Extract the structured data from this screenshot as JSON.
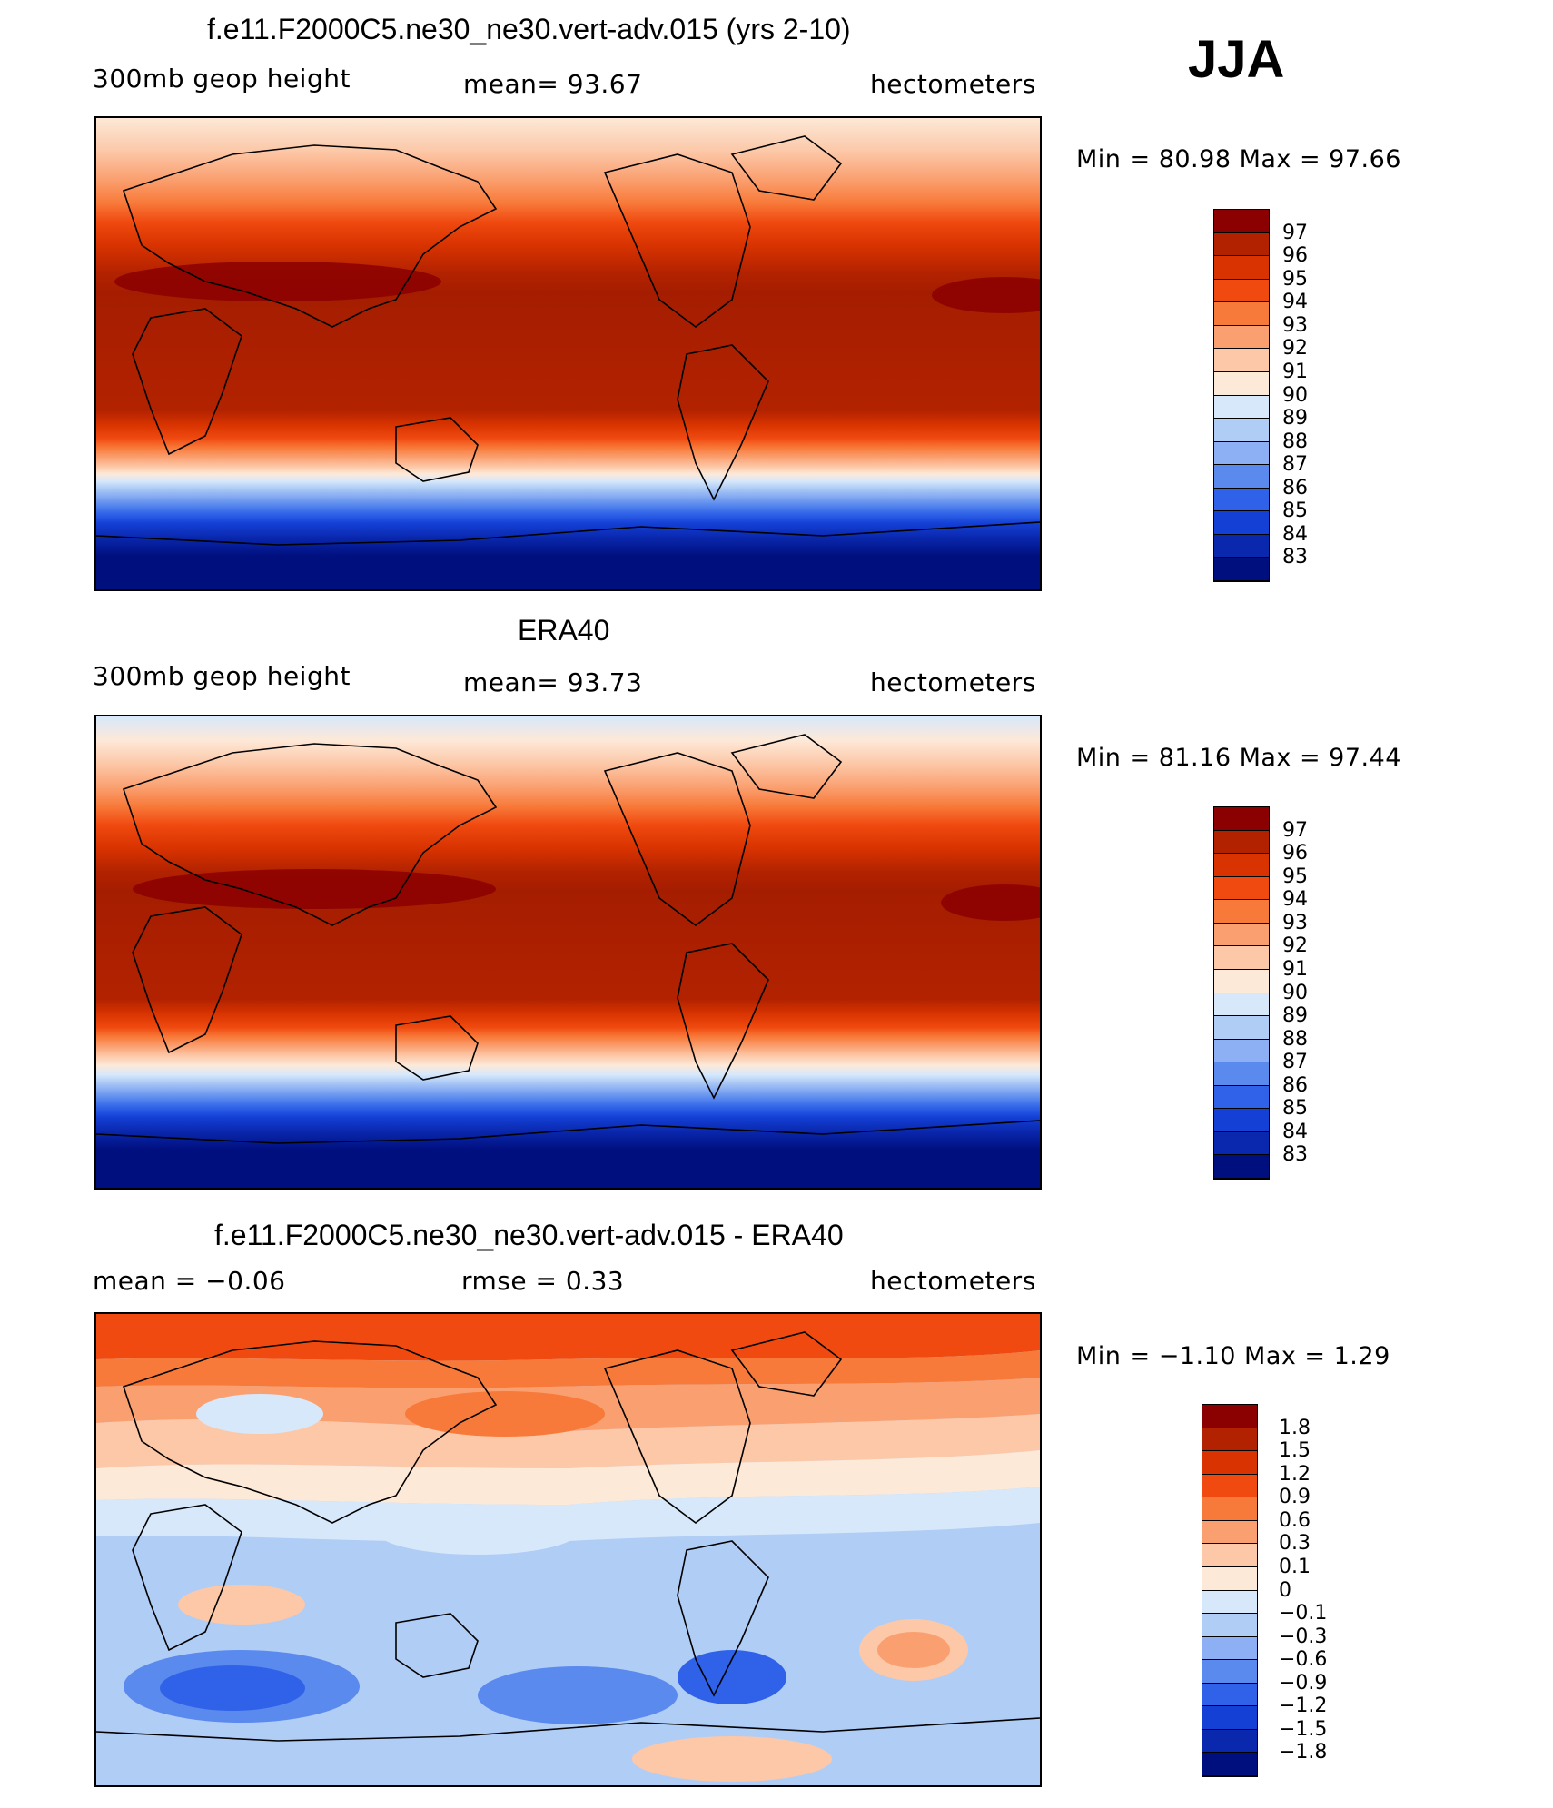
{
  "season": "JJA",
  "panels": [
    {
      "title": "f.e11.F2000C5.ne30_ne30.vert-adv.015 (yrs 2-10)",
      "left_label": "300mb  geop  height",
      "center_label": "mean=   93.67",
      "right_label": "hectometers",
      "minmax": "Min  =    80.98  Max  =    97.66",
      "colorbar_labels": [
        "97",
        "96",
        "95",
        "94",
        "93",
        "92",
        "91",
        "90",
        "89",
        "88",
        "87",
        "86",
        "85",
        "84",
        "83"
      ],
      "colorbar_colors": [
        "#8b0000",
        "#b22200",
        "#d83300",
        "#f04a10",
        "#f87a3a",
        "#faa070",
        "#fcc8a8",
        "#fde9d8",
        "#d7e8fb",
        "#b0cdf6",
        "#8cb0f3",
        "#5a8aee",
        "#2f62e8",
        "#1440d6",
        "#0a28ae",
        "#000f7e"
      ]
    },
    {
      "title": "ERA40",
      "left_label": "300mb  geop  height",
      "center_label": "mean=   93.73",
      "right_label": "hectometers",
      "minmax": "Min  =    81.16  Max  =    97.44",
      "colorbar_labels": [
        "97",
        "96",
        "95",
        "94",
        "93",
        "92",
        "91",
        "90",
        "89",
        "88",
        "87",
        "86",
        "85",
        "84",
        "83"
      ],
      "colorbar_colors": [
        "#8b0000",
        "#b22200",
        "#d83300",
        "#f04a10",
        "#f87a3a",
        "#faa070",
        "#fcc8a8",
        "#fde9d8",
        "#d7e8fb",
        "#b0cdf6",
        "#8cb0f3",
        "#5a8aee",
        "#2f62e8",
        "#1440d6",
        "#0a28ae",
        "#000f7e"
      ]
    },
    {
      "title": "f.e11.F2000C5.ne30_ne30.vert-adv.015 - ERA40",
      "left_label": "mean  =     −0.06",
      "center_label": "rmse  =     0.33",
      "right_label": "hectometers",
      "minmax": "Min  =    −1.10  Max  =     1.29",
      "colorbar_labels": [
        "1.8",
        "1.5",
        "1.2",
        "0.9",
        "0.6",
        "0.3",
        "0.1",
        "0",
        "−0.1",
        "−0.3",
        "−0.6",
        "−0.9",
        "−1.2",
        "−1.5",
        "−1.8"
      ],
      "colorbar_colors": [
        "#8b0000",
        "#b22200",
        "#d83300",
        "#f04a10",
        "#f87a3a",
        "#faa070",
        "#fcc8a8",
        "#fde9d8",
        "#d7e8fb",
        "#b0cdf6",
        "#8cb0f3",
        "#5a8aee",
        "#2f62e8",
        "#1440d6",
        "#0a28ae",
        "#000f7e"
      ]
    }
  ]
}
